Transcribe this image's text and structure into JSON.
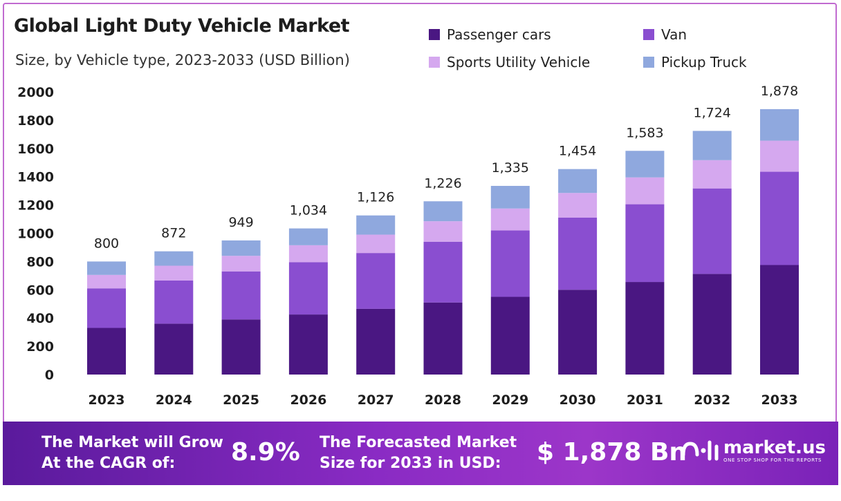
{
  "header": {
    "title": "Global Light Duty Vehicle Market",
    "subtitle": "Size, by Vehicle type, 2023-2033 (USD Billion)"
  },
  "colors": {
    "passenger": "#4a1782",
    "van": "#8a4ed0",
    "suv": "#d5a8ef",
    "pickup": "#8fa8de",
    "banner_start": "#5a1a9c",
    "banner_end": "#9c36c9"
  },
  "chart_data": {
    "type": "bar",
    "stacked": true,
    "title": "Global Light Duty Vehicle Market",
    "subtitle": "Size, by Vehicle type, 2023-2033 (USD Billion)",
    "xlabel": "",
    "ylabel": "",
    "ylim": [
      0,
      2000
    ],
    "yticks": [
      0,
      200,
      400,
      600,
      800,
      1000,
      1200,
      1400,
      1600,
      1800,
      2000
    ],
    "grid": false,
    "legend_position": "top-right",
    "categories": [
      "2023",
      "2024",
      "2025",
      "2026",
      "2027",
      "2028",
      "2029",
      "2030",
      "2031",
      "2032",
      "2033"
    ],
    "series": [
      {
        "name": "Passenger cars",
        "color": "#4a1782",
        "values": [
          330,
          360,
          390,
          425,
          465,
          510,
          550,
          600,
          655,
          712,
          775
        ]
      },
      {
        "name": "Van",
        "color": "#8a4ed0",
        "values": [
          280,
          305,
          340,
          370,
          395,
          430,
          470,
          510,
          550,
          605,
          660
        ]
      },
      {
        "name": "Sports Utility Vehicle",
        "color": "#d5a8ef",
        "values": [
          95,
          105,
          110,
          120,
          130,
          145,
          155,
          175,
          190,
          200,
          220
        ]
      },
      {
        "name": "Pickup Truck",
        "color": "#8fa8de",
        "values": [
          95,
          102,
          109,
          119,
          136,
          141,
          160,
          169,
          188,
          207,
          223
        ]
      }
    ],
    "totals": [
      "800",
      "872",
      "949",
      "1,034",
      "1,126",
      "1,226",
      "1,335",
      "1,454",
      "1,583",
      "1,724",
      "1,878"
    ]
  },
  "legend": {
    "items": [
      {
        "label": "Passenger cars",
        "color": "#4a1782"
      },
      {
        "label": "Van",
        "color": "#8a4ed0"
      },
      {
        "label": "Sports Utility Vehicle",
        "color": "#d5a8ef"
      },
      {
        "label": "Pickup Truck",
        "color": "#8fa8de"
      }
    ]
  },
  "banner": {
    "cagr_label_line1": "The Market will Grow",
    "cagr_label_line2": "At the CAGR of:",
    "cagr_value": "8.9%",
    "forecast_label_line1": "The Forecasted Market",
    "forecast_label_line2": "Size for 2033 in USD:",
    "forecast_value": "$ 1,878 Bn",
    "brand_name": "market.us",
    "brand_tagline": "ONE STOP SHOP FOR THE REPORTS"
  }
}
